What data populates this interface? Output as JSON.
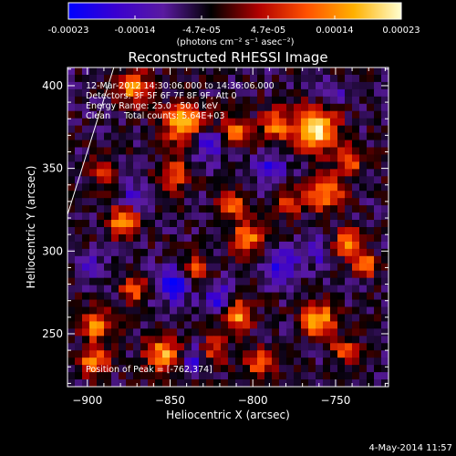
{
  "colorbar": {
    "stops": [
      "#0000ff",
      "#3a00d0",
      "#5a1aa0",
      "#000000",
      "#b00000",
      "#ff5000",
      "#ffb000",
      "#ffffd0"
    ],
    "ticks": [
      "-0.00023",
      "-0.00014",
      "-4.7e-05",
      "4.7e-05",
      "0.00014",
      "0.00023"
    ],
    "units_label": "(photons cm⁻² s⁻¹ asec⁻²)"
  },
  "chart_data": {
    "type": "heatmap",
    "title": "Reconstructed RHESSI Image",
    "xlabel": "Heliocentric X (arcsec)",
    "ylabel": "Heliocentric Y (arcsec)",
    "xlim": [
      -912,
      -718
    ],
    "ylim": [
      218,
      411
    ],
    "x_ticks": [
      -900,
      -850,
      -800,
      -750
    ],
    "y_ticks": [
      250,
      300,
      350,
      400
    ],
    "x_tick_labels": [
      "−900",
      "−850",
      "−800",
      "−750"
    ],
    "y_tick_labels": [
      "250",
      "300",
      "350",
      "400"
    ],
    "value_range": [
      -0.00023,
      0.00023
    ],
    "annotations": [
      "12-Mar-2012 14:30:06.000 to 14:36:06.000",
      "Detectors: 3F 5F 6F 7F 8F 9F, Att 0",
      "Energy Range: 25.0 - 50.0 keV",
      "Clean     Total counts: 5.64E+03"
    ],
    "peak_label": "Position of Peak = [-762,374]",
    "peak": [
      -762,
      374
    ],
    "limb_line": [
      [
        -912,
        322
      ],
      [
        -884,
        411
      ]
    ],
    "hot_spots": [
      {
        "x": -762,
        "y": 374,
        "value": 0.00023,
        "r": 12
      },
      {
        "x": -872,
        "y": 399,
        "value": 0.00016,
        "r": 9
      },
      {
        "x": -842,
        "y": 378,
        "value": 0.00017,
        "r": 12
      },
      {
        "x": -812,
        "y": 372,
        "value": 0.00013,
        "r": 9
      },
      {
        "x": -786,
        "y": 376,
        "value": 0.00012,
        "r": 9
      },
      {
        "x": -890,
        "y": 348,
        "value": 8e-05,
        "r": 7
      },
      {
        "x": -848,
        "y": 347,
        "value": 0.0001,
        "r": 9
      },
      {
        "x": -812,
        "y": 328,
        "value": 9e-05,
        "r": 8
      },
      {
        "x": -778,
        "y": 330,
        "value": 7e-05,
        "r": 8
      },
      {
        "x": -756,
        "y": 335,
        "value": 0.00015,
        "r": 10
      },
      {
        "x": -742,
        "y": 354,
        "value": 0.00011,
        "r": 8
      },
      {
        "x": -878,
        "y": 318,
        "value": 0.00016,
        "r": 9
      },
      {
        "x": -803,
        "y": 308,
        "value": 0.00014,
        "r": 9
      },
      {
        "x": -872,
        "y": 277,
        "value": 0.00012,
        "r": 7
      },
      {
        "x": -836,
        "y": 288,
        "value": 9e-05,
        "r": 8
      },
      {
        "x": -810,
        "y": 262,
        "value": 0.00016,
        "r": 9
      },
      {
        "x": -743,
        "y": 305,
        "value": 0.00013,
        "r": 8
      },
      {
        "x": -732,
        "y": 292,
        "value": 0.00012,
        "r": 7
      },
      {
        "x": -760,
        "y": 258,
        "value": 0.00017,
        "r": 10
      },
      {
        "x": -745,
        "y": 240,
        "value": 9e-05,
        "r": 7
      },
      {
        "x": -895,
        "y": 255,
        "value": 0.00013,
        "r": 9
      },
      {
        "x": -896,
        "y": 233,
        "value": 0.00014,
        "r": 8
      },
      {
        "x": -854,
        "y": 238,
        "value": 0.00015,
        "r": 10
      },
      {
        "x": -823,
        "y": 240,
        "value": 9e-05,
        "r": 8
      },
      {
        "x": -796,
        "y": 232,
        "value": 0.00011,
        "r": 8
      }
    ],
    "cold_spots": [
      {
        "x": -826,
        "y": 366,
        "value": -0.00014,
        "r": 10
      },
      {
        "x": -871,
        "y": 332,
        "value": -0.00012,
        "r": 8
      },
      {
        "x": -848,
        "y": 280,
        "value": -0.00018,
        "r": 10
      },
      {
        "x": -820,
        "y": 270,
        "value": -0.00015,
        "r": 9
      },
      {
        "x": -782,
        "y": 290,
        "value": -0.00014,
        "r": 10
      },
      {
        "x": -790,
        "y": 350,
        "value": -0.00012,
        "r": 9
      },
      {
        "x": -760,
        "y": 300,
        "value": -0.0001,
        "r": 8
      },
      {
        "x": -835,
        "y": 235,
        "value": -0.00011,
        "r": 8
      },
      {
        "x": -752,
        "y": 395,
        "value": -9e-05,
        "r": 8
      },
      {
        "x": -898,
        "y": 290,
        "value": -0.0001,
        "r": 8
      }
    ]
  },
  "footer": {
    "date": "4-May-2014 11:57"
  }
}
